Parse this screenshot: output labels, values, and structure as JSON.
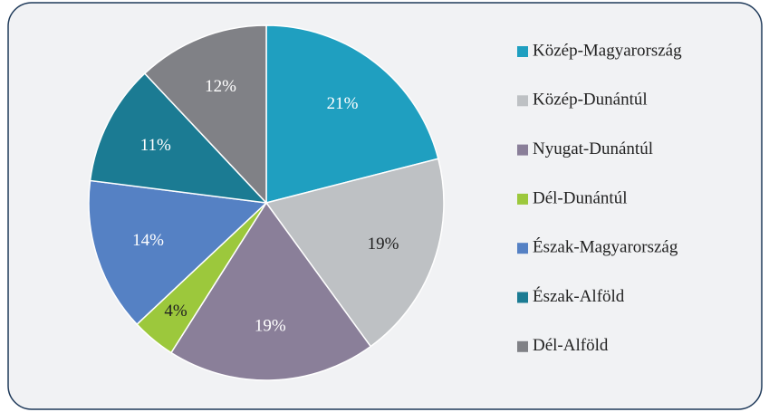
{
  "chart_data": {
    "type": "pie",
    "categories": [
      "Közép-Magyarország",
      "Közép-Dunántúl",
      "Nyugat-Dunántúl",
      "Dél-Dunántúl",
      "Észak-Magyarország",
      "Észak-Alföld",
      "Dél-Alföld"
    ],
    "values": [
      21,
      19,
      19,
      4,
      14,
      11,
      12
    ],
    "value_labels": [
      "21%",
      "19%",
      "19%",
      "4%",
      "14%",
      "11%",
      "12%"
    ],
    "colors": [
      "#1f9fc0",
      "#bec1c4",
      "#8a7f99",
      "#9cc83c",
      "#5581c4",
      "#1b7b93",
      "#808186"
    ],
    "legend": "right"
  }
}
